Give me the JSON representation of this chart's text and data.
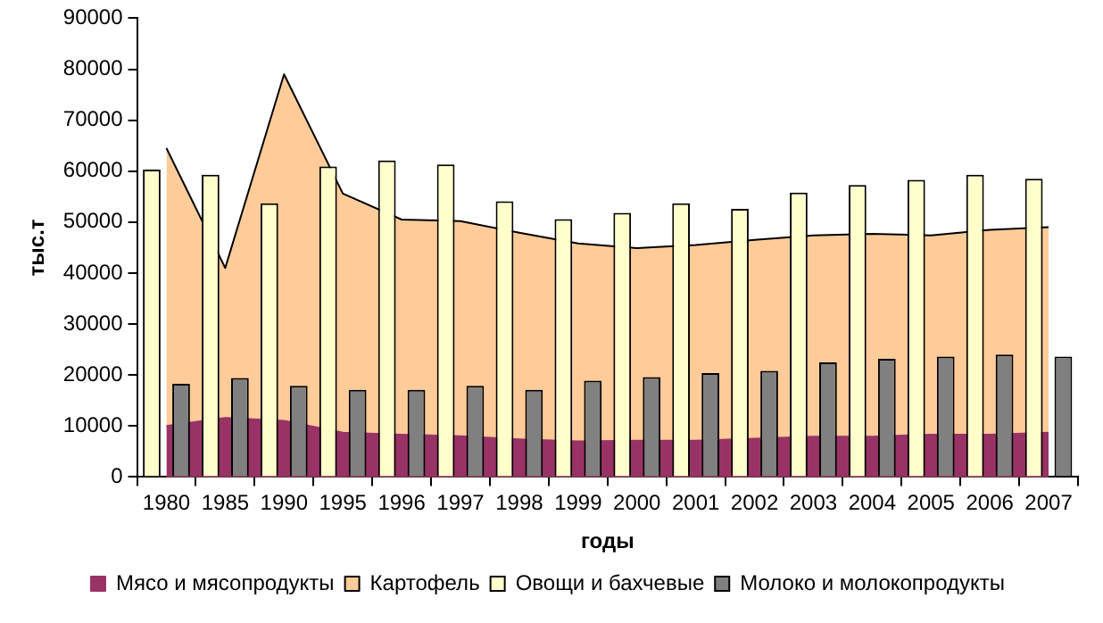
{
  "chart_data": {
    "type": "bar",
    "xlabel": "годы",
    "ylabel": "тыс.т",
    "categories": [
      "1980",
      "1985",
      "1990",
      "1995",
      "1996",
      "1997",
      "1998",
      "1999",
      "2000",
      "2001",
      "2002",
      "2003",
      "2004",
      "2005",
      "2006",
      "2007"
    ],
    "series": [
      {
        "name": "Мясо и мясопродукты",
        "type": "area",
        "color": "#993366",
        "values": [
          10000,
          11600,
          11000,
          8700,
          8300,
          8000,
          7400,
          7000,
          7100,
          7100,
          7500,
          7900,
          7900,
          8300,
          8300,
          8700
        ]
      },
      {
        "name": "Картофель",
        "type": "area",
        "color": "#ffcc99",
        "values": [
          64500,
          41000,
          79000,
          55600,
          50500,
          50200,
          47900,
          45800,
          44900,
          45500,
          46500,
          47400,
          47700,
          47400,
          48500,
          49000
        ]
      },
      {
        "name": "Овощи и бахчевые",
        "type": "bar",
        "color": "#ffffcc",
        "values": [
          60300,
          59300,
          53700,
          60900,
          62100,
          61300,
          54100,
          50600,
          51800,
          53700,
          52600,
          55800,
          57300,
          58300,
          59300,
          58500
        ]
      },
      {
        "name": "Молоко и молокопродукты",
        "type": "bar",
        "color": "#808080",
        "values": [
          18300,
          19400,
          17900,
          17100,
          17100,
          17900,
          17100,
          18900,
          19600,
          20400,
          20800,
          22500,
          23200,
          23600,
          24000,
          23600
        ]
      }
    ],
    "ylim": [
      0,
      90000
    ],
    "yticks": [
      0,
      10000,
      20000,
      30000,
      40000,
      50000,
      60000,
      70000,
      80000,
      90000
    ],
    "grid": false,
    "legend": "bottom"
  }
}
